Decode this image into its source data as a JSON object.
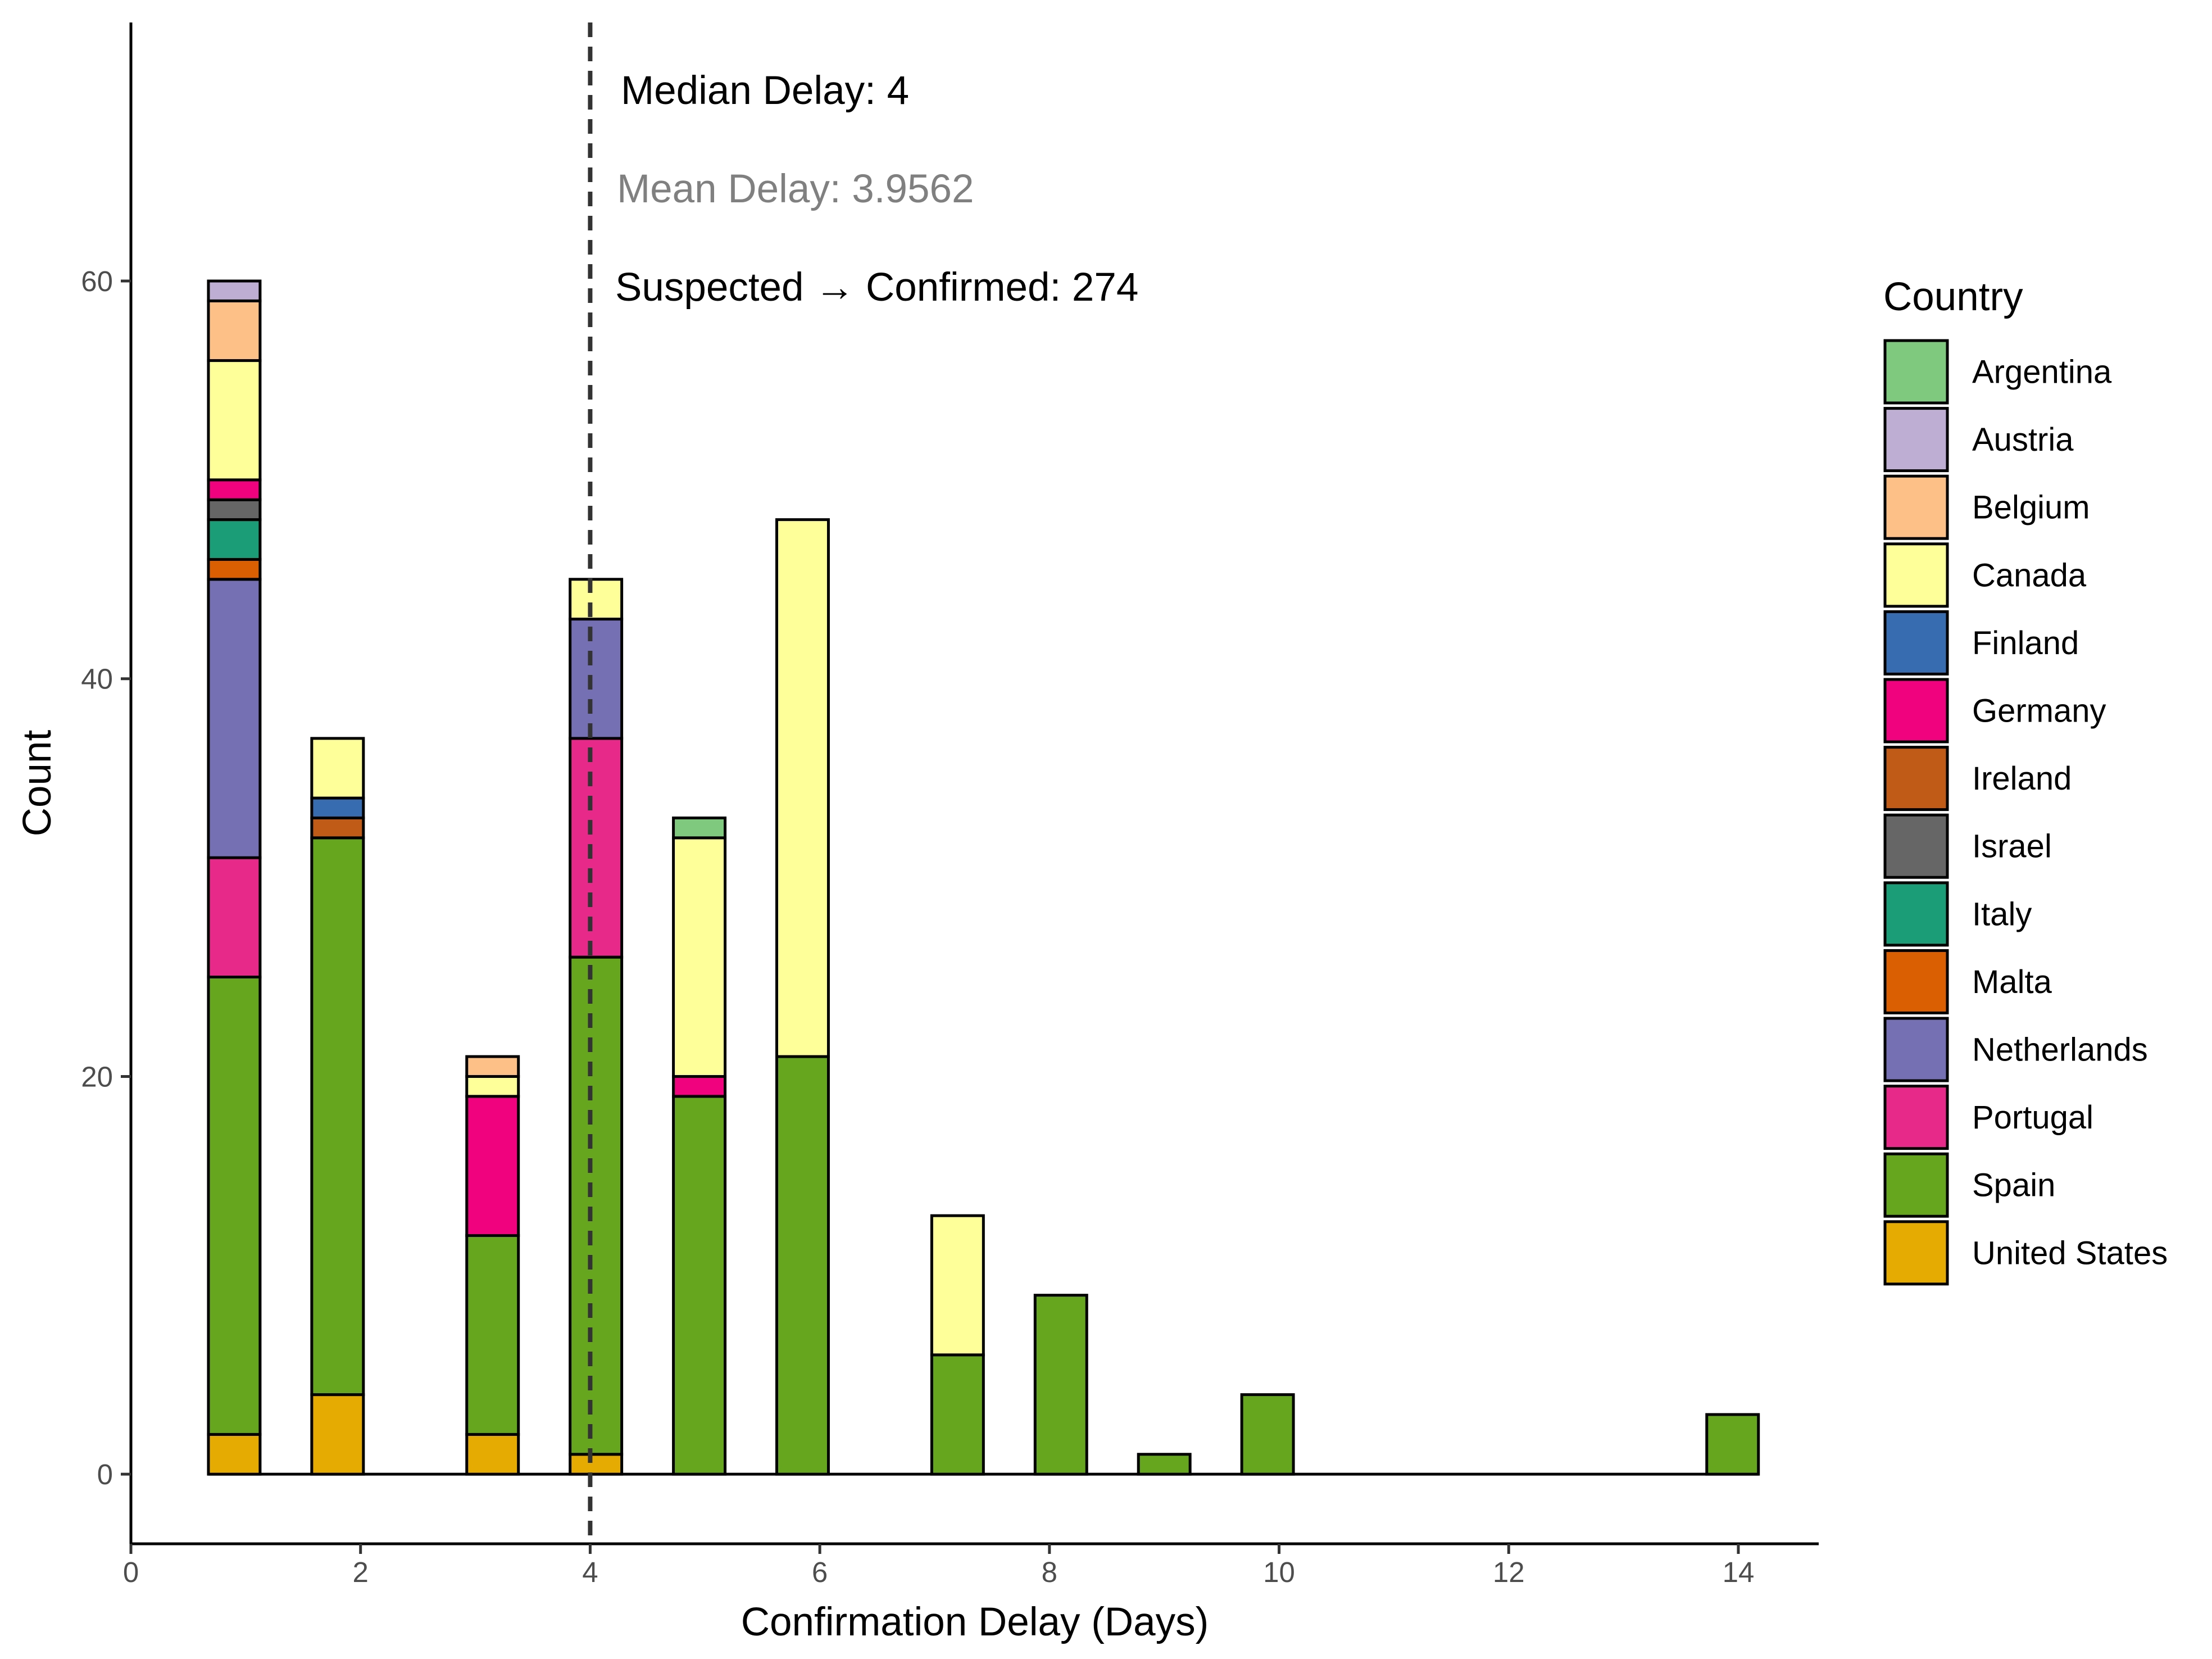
{
  "chart_data": {
    "type": "bar",
    "stacked": true,
    "xlabel": "Confirmation Delay (Days)",
    "ylabel": "Count",
    "xlim": [
      0,
      14.7
    ],
    "ylim": [
      -3.5,
      73
    ],
    "x_ticks": [
      0,
      2,
      4,
      6,
      8,
      10,
      12,
      14
    ],
    "y_ticks": [
      0,
      20,
      40,
      60
    ],
    "grid": false,
    "legend": {
      "title": "Country",
      "placement": "right",
      "entries": [
        {
          "name": "Argentina",
          "color": "#7fc97f"
        },
        {
          "name": "Austria",
          "color": "#beaed4"
        },
        {
          "name": "Belgium",
          "color": "#fdc086"
        },
        {
          "name": "Canada",
          "color": "#ffff99"
        },
        {
          "name": "Finland",
          "color": "#386cb0"
        },
        {
          "name": "Germany",
          "color": "#f0027f"
        },
        {
          "name": "Ireland",
          "color": "#bf5b17"
        },
        {
          "name": "Israel",
          "color": "#666666"
        },
        {
          "name": "Italy",
          "color": "#1b9e77"
        },
        {
          "name": "Malta",
          "color": "#d95f02"
        },
        {
          "name": "Netherlands",
          "color": "#7570b3"
        },
        {
          "name": "Portugal",
          "color": "#e7298a"
        },
        {
          "name": "Spain",
          "color": "#66a61e"
        },
        {
          "name": "United States",
          "color": "#e6ab02"
        }
      ]
    },
    "bars": [
      {
        "x": 0.9,
        "segments": [
          {
            "country": "United States",
            "value": 2
          },
          {
            "country": "Spain",
            "value": 23
          },
          {
            "country": "Portugal",
            "value": 6
          },
          {
            "country": "Netherlands",
            "value": 14
          },
          {
            "country": "Malta",
            "value": 1
          },
          {
            "country": "Italy",
            "value": 2
          },
          {
            "country": "Israel",
            "value": 1
          },
          {
            "country": "Germany",
            "value": 1
          },
          {
            "country": "Canada",
            "value": 6
          },
          {
            "country": "Belgium",
            "value": 3
          },
          {
            "country": "Austria",
            "value": 1
          }
        ]
      },
      {
        "x": 1.8,
        "segments": [
          {
            "country": "United States",
            "value": 4
          },
          {
            "country": "Spain",
            "value": 28
          },
          {
            "country": "Ireland",
            "value": 1
          },
          {
            "country": "Finland",
            "value": 1
          },
          {
            "country": "Canada",
            "value": 3
          }
        ]
      },
      {
        "x": 3.15,
        "segments": [
          {
            "country": "United States",
            "value": 2
          },
          {
            "country": "Spain",
            "value": 10
          },
          {
            "country": "Germany",
            "value": 7
          },
          {
            "country": "Canada",
            "value": 1
          },
          {
            "country": "Belgium",
            "value": 1
          }
        ]
      },
      {
        "x": 4.05,
        "segments": [
          {
            "country": "United States",
            "value": 1
          },
          {
            "country": "Spain",
            "value": 25
          },
          {
            "country": "Portugal",
            "value": 11
          },
          {
            "country": "Netherlands",
            "value": 6
          },
          {
            "country": "Canada",
            "value": 2
          }
        ]
      },
      {
        "x": 4.95,
        "segments": [
          {
            "country": "Spain",
            "value": 19
          },
          {
            "country": "Germany",
            "value": 1
          },
          {
            "country": "Canada",
            "value": 12
          },
          {
            "country": "Argentina",
            "value": 1
          }
        ]
      },
      {
        "x": 5.85,
        "segments": [
          {
            "country": "Spain",
            "value": 21
          },
          {
            "country": "Canada",
            "value": 27
          }
        ]
      },
      {
        "x": 7.2,
        "segments": [
          {
            "country": "Spain",
            "value": 6
          },
          {
            "country": "Canada",
            "value": 7
          }
        ]
      },
      {
        "x": 8.1,
        "segments": [
          {
            "country": "Spain",
            "value": 9
          }
        ]
      },
      {
        "x": 9.0,
        "segments": [
          {
            "country": "Spain",
            "value": 1
          }
        ]
      },
      {
        "x": 9.9,
        "segments": [
          {
            "country": "Spain",
            "value": 4
          }
        ]
      },
      {
        "x": 13.95,
        "segments": [
          {
            "country": "Spain",
            "value": 3
          }
        ]
      }
    ],
    "bar_width": 0.45,
    "baseline_range": [
      0.675,
      14.175
    ],
    "reference_line": {
      "x": 4,
      "style": "dashed",
      "color": "#333333"
    },
    "annotations": [
      {
        "text": "Median Delay: 4",
        "color": "#000000"
      },
      {
        "text": "Mean Delay: 3.9562",
        "color": "#808080"
      },
      {
        "text": "Suspected → Confirmed: 274",
        "color": "#000000"
      }
    ]
  }
}
